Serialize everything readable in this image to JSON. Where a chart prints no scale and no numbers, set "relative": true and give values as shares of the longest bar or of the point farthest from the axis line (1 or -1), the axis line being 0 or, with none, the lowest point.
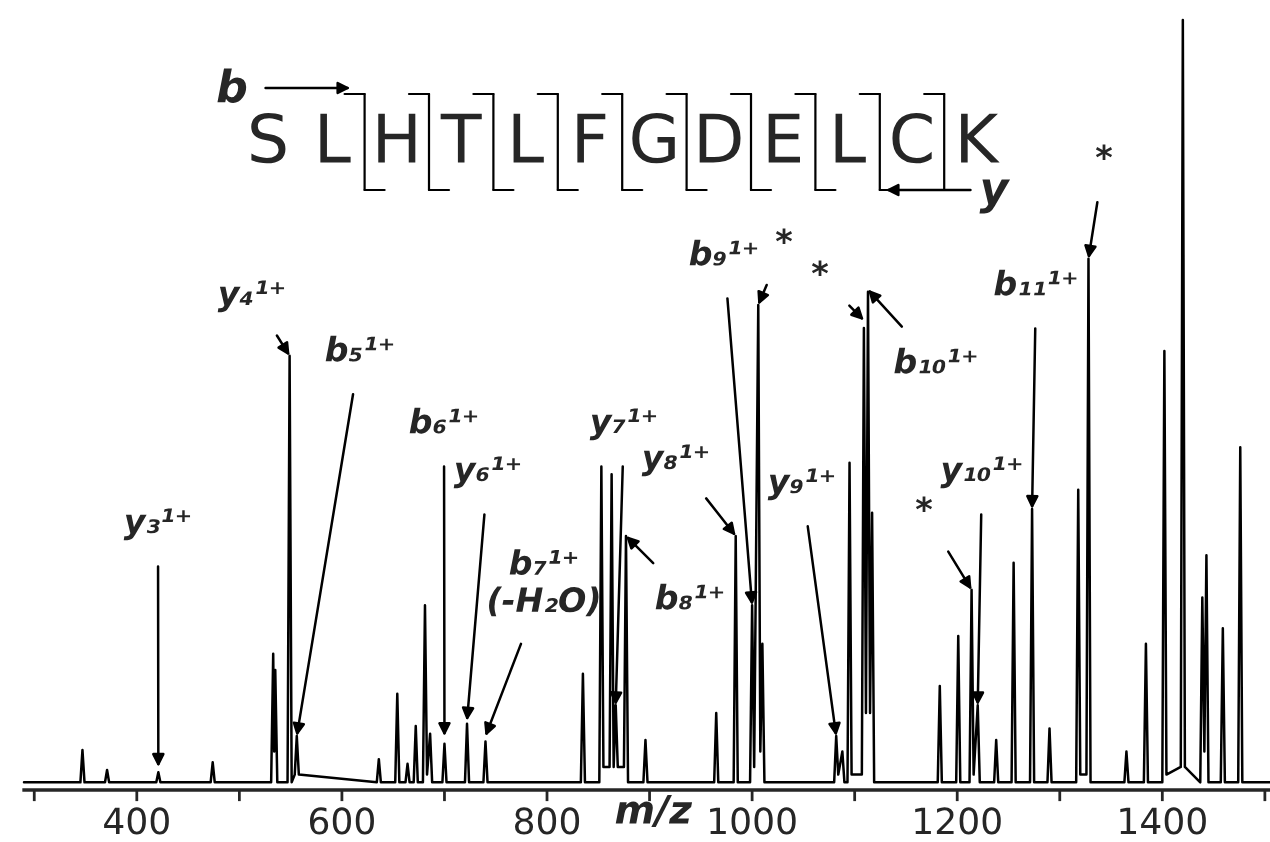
{
  "chart_data": {
    "type": "line",
    "relative": true,
    "xlabel": "m/z",
    "xlim": [
      290,
      1505
    ],
    "xticks": [
      {
        "value": 300,
        "label": null
      },
      400,
      {
        "value": 500,
        "label": null
      },
      600,
      {
        "value": 700,
        "label": null
      },
      800,
      {
        "value": 900,
        "label": null
      },
      1000,
      {
        "value": 1100,
        "label": null
      },
      1200,
      {
        "value": 1300,
        "label": null
      },
      1400,
      {
        "value": 1500,
        "label": null
      }
    ],
    "grid": false,
    "legend": false,
    "marker": "none",
    "line_style": "solid",
    "series": [
      {
        "color": "#000000",
        "x": [
          290,
          345,
          347,
          349,
          369,
          371,
          373,
          419,
          421,
          423,
          472,
          474,
          476,
          531,
          533,
          534,
          535,
          537,
          547,
          549,
          551,
          554,
          556,
          558,
          634,
          636,
          638,
          652,
          654,
          656,
          662,
          664,
          666,
          670,
          672,
          674,
          679,
          681,
          683,
          686,
          688,
          698,
          700,
          702,
          720,
          722,
          724,
          738,
          740,
          742,
          833,
          835,
          837,
          851,
          853,
          855,
          861,
          863,
          865,
          867,
          869,
          875,
          877,
          879,
          894,
          896,
          898,
          963,
          965,
          967,
          982,
          984,
          986,
          998,
          1000,
          1002,
          1006,
          1008,
          1010,
          1012,
          1080,
          1082,
          1084,
          1088,
          1090,
          1093,
          1095,
          1097,
          1107,
          1109,
          1111,
          1113,
          1115,
          1117,
          1119,
          1181,
          1183,
          1185,
          1199,
          1201,
          1203,
          1212,
          1214,
          1216,
          1220,
          1222,
          1236,
          1238,
          1240,
          1253,
          1255,
          1257,
          1271,
          1273,
          1275,
          1288,
          1290,
          1292,
          1316,
          1318,
          1320,
          1326,
          1328,
          1330,
          1363,
          1365,
          1367,
          1382,
          1384,
          1386,
          1400,
          1402,
          1404,
          1418,
          1420,
          1422,
          1437,
          1439,
          1441,
          1443,
          1445,
          1457,
          1459,
          1461,
          1474,
          1476,
          1478,
          1505
        ],
        "values": [
          0.01,
          0.01,
          0.052,
          0.01,
          0.01,
          0.026,
          0.01,
          0.01,
          0.023,
          0.01,
          0.01,
          0.036,
          0.01,
          0.01,
          0.177,
          0.05,
          0.156,
          0.01,
          0.01,
          0.564,
          0.01,
          0.02,
          0.07,
          0.02,
          0.01,
          0.04,
          0.01,
          0.01,
          0.125,
          0.01,
          0.01,
          0.034,
          0.01,
          0.01,
          0.083,
          0.01,
          0.01,
          0.24,
          0.02,
          0.073,
          0.01,
          0.01,
          0.06,
          0.01,
          0.01,
          0.086,
          0.01,
          0.01,
          0.063,
          0.01,
          0.01,
          0.151,
          0.01,
          0.01,
          0.42,
          0.03,
          0.03,
          0.41,
          0.03,
          0.11,
          0.03,
          0.03,
          0.33,
          0.01,
          0.01,
          0.065,
          0.01,
          0.01,
          0.1,
          0.01,
          0.01,
          0.33,
          0.01,
          0.01,
          0.24,
          0.03,
          0.63,
          0.05,
          0.19,
          0.01,
          0.01,
          0.07,
          0.02,
          0.05,
          0.01,
          0.01,
          0.425,
          0.02,
          0.02,
          0.6,
          0.1,
          0.647,
          0.1,
          0.36,
          0.01,
          0.01,
          0.135,
          0.01,
          0.01,
          0.2,
          0.01,
          0.01,
          0.26,
          0.02,
          0.11,
          0.01,
          0.01,
          0.065,
          0.01,
          0.01,
          0.295,
          0.01,
          0.01,
          0.365,
          0.01,
          0.01,
          0.08,
          0.01,
          0.01,
          0.39,
          0.02,
          0.02,
          0.69,
          0.01,
          0.01,
          0.05,
          0.01,
          0.01,
          0.19,
          0.01,
          0.01,
          0.57,
          0.02,
          0.03,
          1.0,
          0.03,
          0.01,
          0.25,
          0.05,
          0.305,
          0.01,
          0.01,
          0.21,
          0.01,
          0.01,
          0.445,
          0.01,
          0.01
        ]
      }
    ],
    "annotations": [
      {
        "text": "y₃¹⁺",
        "x": 421,
        "y": 0.03
      },
      {
        "text": "y₄¹⁺",
        "x": 549,
        "y": 0.564
      },
      {
        "text": "b₅¹⁺",
        "x": 556,
        "y": 0.07
      },
      {
        "text": "b₆¹⁺",
        "x": 700,
        "y": 0.07
      },
      {
        "text": "y₆¹⁺",
        "x": 722,
        "y": 0.09
      },
      {
        "text": "b₇¹⁺\n(-H₂O)",
        "x": 740,
        "y": 0.07
      },
      {
        "text": "y₇¹⁺",
        "x": 867,
        "y": 0.11
      },
      {
        "text": "b₈¹⁺",
        "x": 877,
        "y": 0.33
      },
      {
        "text": "y₈¹⁺",
        "x": 984,
        "y": 0.33
      },
      {
        "text": "b₉¹⁺",
        "x": 1000,
        "y": 0.24
      },
      {
        "text": "*",
        "x": 1006,
        "y": 0.63
      },
      {
        "text": "*",
        "x": 1109,
        "y": 0.61
      },
      {
        "text": "b₁₀¹⁺",
        "x": 1113,
        "y": 0.65
      },
      {
        "text": "y₉¹⁺",
        "x": 1082,
        "y": 0.07
      },
      {
        "text": "*",
        "x": 1214,
        "y": 0.26
      },
      {
        "text": "y₁₀¹⁺",
        "x": 1220,
        "y": 0.11
      },
      {
        "text": "b₁₁¹⁺",
        "x": 1273,
        "y": 0.365
      },
      {
        "text": "*",
        "x": 1328,
        "y": 0.69
      },
      "SLHTLFGDELCK",
      "b",
      "y"
    ]
  }
}
